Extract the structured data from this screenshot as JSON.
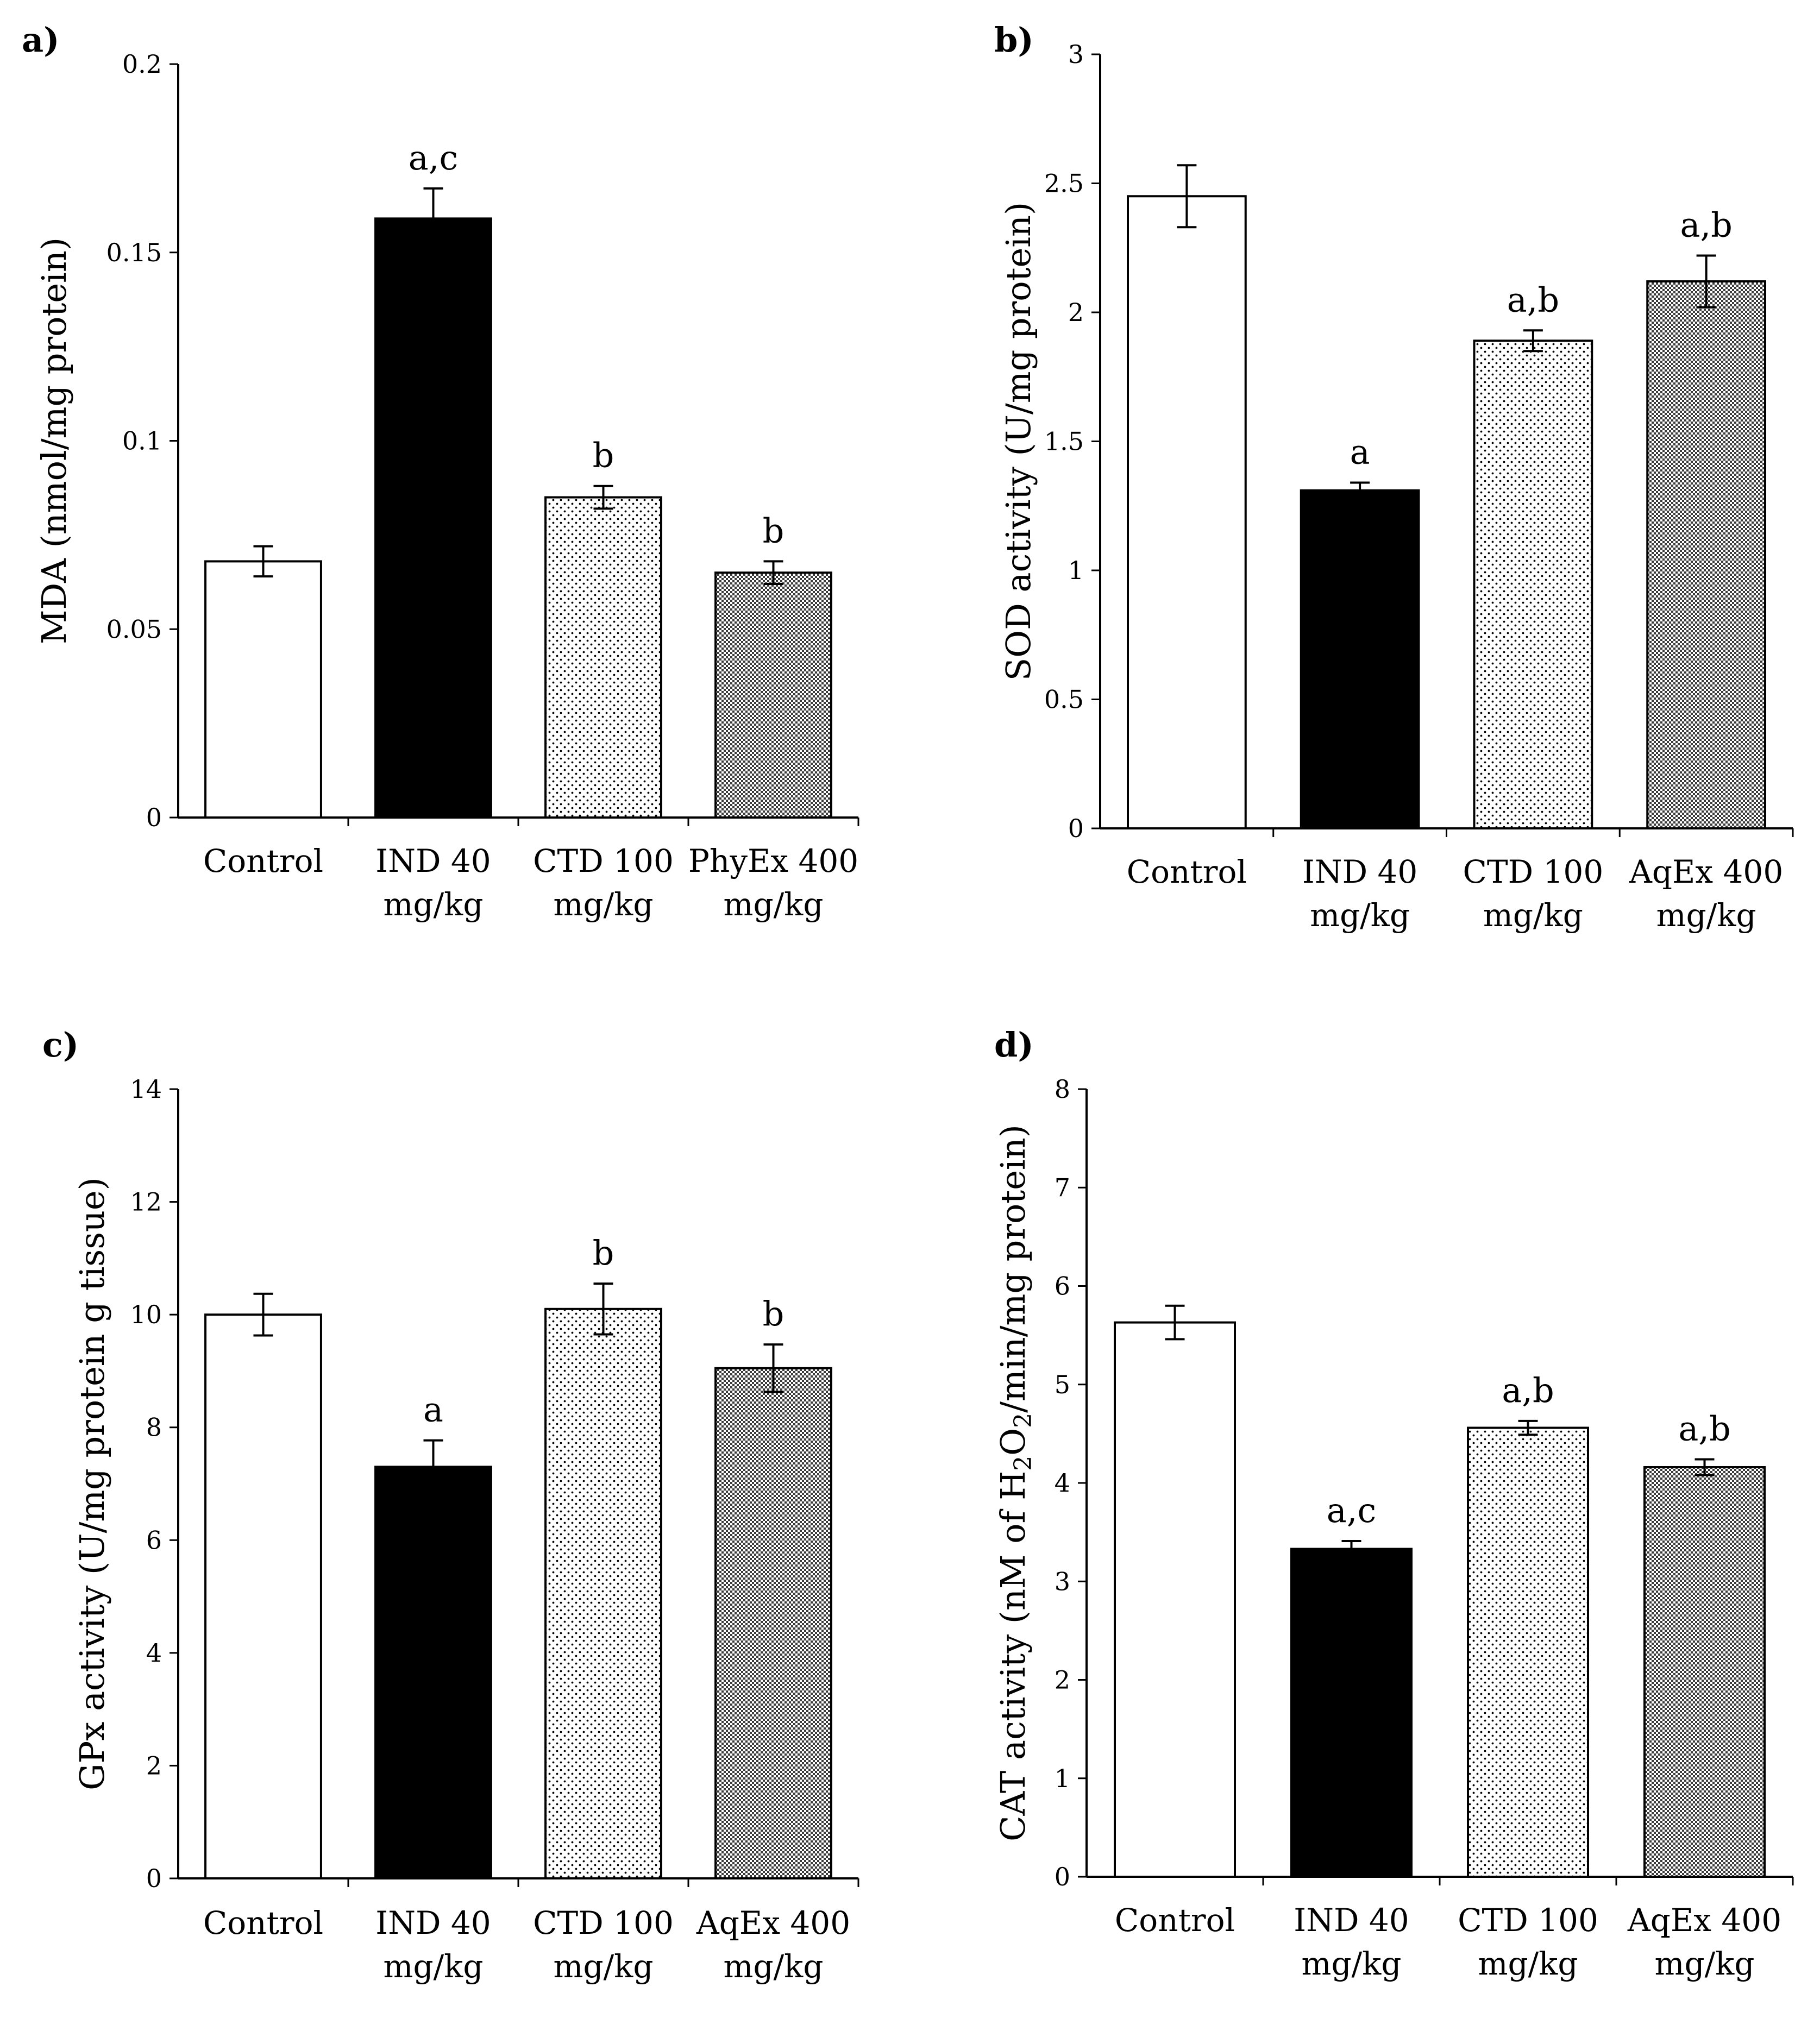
{
  "chart_data": [
    {
      "type": "bar",
      "panel_label": "a)",
      "title": "",
      "xlabel": "",
      "ylabel": "MDA (nmol/mg protein)",
      "ylim": [
        0,
        0.2
      ],
      "yticks": [
        0,
        0.05,
        0.1,
        0.15,
        0.2
      ],
      "ytick_labels": [
        "0",
        "0.05",
        "0.1",
        "0.15",
        "0.2"
      ],
      "categories": [
        [
          "Control"
        ],
        [
          "IND 40",
          "mg/kg"
        ],
        [
          "CTD 100",
          "mg/kg"
        ],
        [
          "PhyEx 400",
          "mg/kg"
        ]
      ],
      "values": [
        0.068,
        0.159,
        0.085,
        0.065
      ],
      "errors": [
        0.004,
        0.008,
        0.003,
        0.003
      ],
      "sig_labels": [
        "",
        "a,c",
        "b",
        "b"
      ],
      "fills": [
        "white",
        "black",
        "dots-light",
        "dots-dense"
      ]
    },
    {
      "type": "bar",
      "panel_label": "b)",
      "title": "",
      "xlabel": "",
      "ylabel": "SOD activity (U/mg protein)",
      "ylim": [
        0,
        3
      ],
      "yticks": [
        0,
        0.5,
        1,
        1.5,
        2,
        2.5,
        3
      ],
      "ytick_labels": [
        "0",
        "0.5",
        "1",
        "1.5",
        "2",
        "2.5",
        "3"
      ],
      "categories": [
        [
          "Control"
        ],
        [
          "IND 40",
          "mg/kg"
        ],
        [
          "CTD 100",
          "mg/kg"
        ],
        [
          "AqEx 400",
          "mg/kg"
        ]
      ],
      "values": [
        2.45,
        1.31,
        1.89,
        2.12
      ],
      "errors": [
        0.12,
        0.03,
        0.04,
        0.1
      ],
      "sig_labels": [
        "",
        "a",
        "a,b",
        "a,b"
      ],
      "fills": [
        "white",
        "black",
        "dots-light",
        "dots-dense"
      ]
    },
    {
      "type": "bar",
      "panel_label": "c)",
      "title": "",
      "xlabel": "",
      "ylabel": "GPx activity (U/mg protein g tissue)",
      "ylim": [
        0,
        14
      ],
      "yticks": [
        0,
        2,
        4,
        6,
        8,
        10,
        12,
        14
      ],
      "ytick_labels": [
        "0",
        "2",
        "4",
        "6",
        "8",
        "10",
        "12",
        "14"
      ],
      "categories": [
        [
          "Control"
        ],
        [
          "IND 40",
          "mg/kg"
        ],
        [
          "CTD 100",
          "mg/kg"
        ],
        [
          "AqEx 400",
          "mg/kg"
        ]
      ],
      "values": [
        10.0,
        7.3,
        10.1,
        9.05
      ],
      "errors": [
        0.37,
        0.47,
        0.45,
        0.42
      ],
      "sig_labels": [
        "",
        "a",
        "b",
        "b"
      ],
      "fills": [
        "white",
        "black",
        "dots-light",
        "dots-dense"
      ]
    },
    {
      "type": "bar",
      "panel_label": "d)",
      "title": "",
      "xlabel": "",
      "ylabel": "CAT activity (nM of H",
      "ylabel_sub": "2",
      "ylabel_mid": "O",
      "ylabel_sub2": "2",
      "ylabel_end": "/min/mg protein)",
      "ylim": [
        0,
        8
      ],
      "yticks": [
        0,
        1,
        2,
        3,
        4,
        5,
        6,
        7,
        8
      ],
      "ytick_labels": [
        "0",
        "1",
        "2",
        "3",
        "4",
        "5",
        "6",
        "7",
        "8"
      ],
      "categories": [
        [
          "Control"
        ],
        [
          "IND 40",
          "mg/kg"
        ],
        [
          "CTD 100",
          "mg/kg"
        ],
        [
          "AqEx 400",
          "mg/kg"
        ]
      ],
      "values": [
        5.63,
        3.33,
        4.56,
        4.16
      ],
      "errors": [
        0.17,
        0.08,
        0.07,
        0.08
      ],
      "sig_labels": [
        "",
        "a,c",
        "a,b",
        "a,b"
      ],
      "fills": [
        "white",
        "black",
        "dots-light",
        "dots-dense"
      ]
    }
  ]
}
